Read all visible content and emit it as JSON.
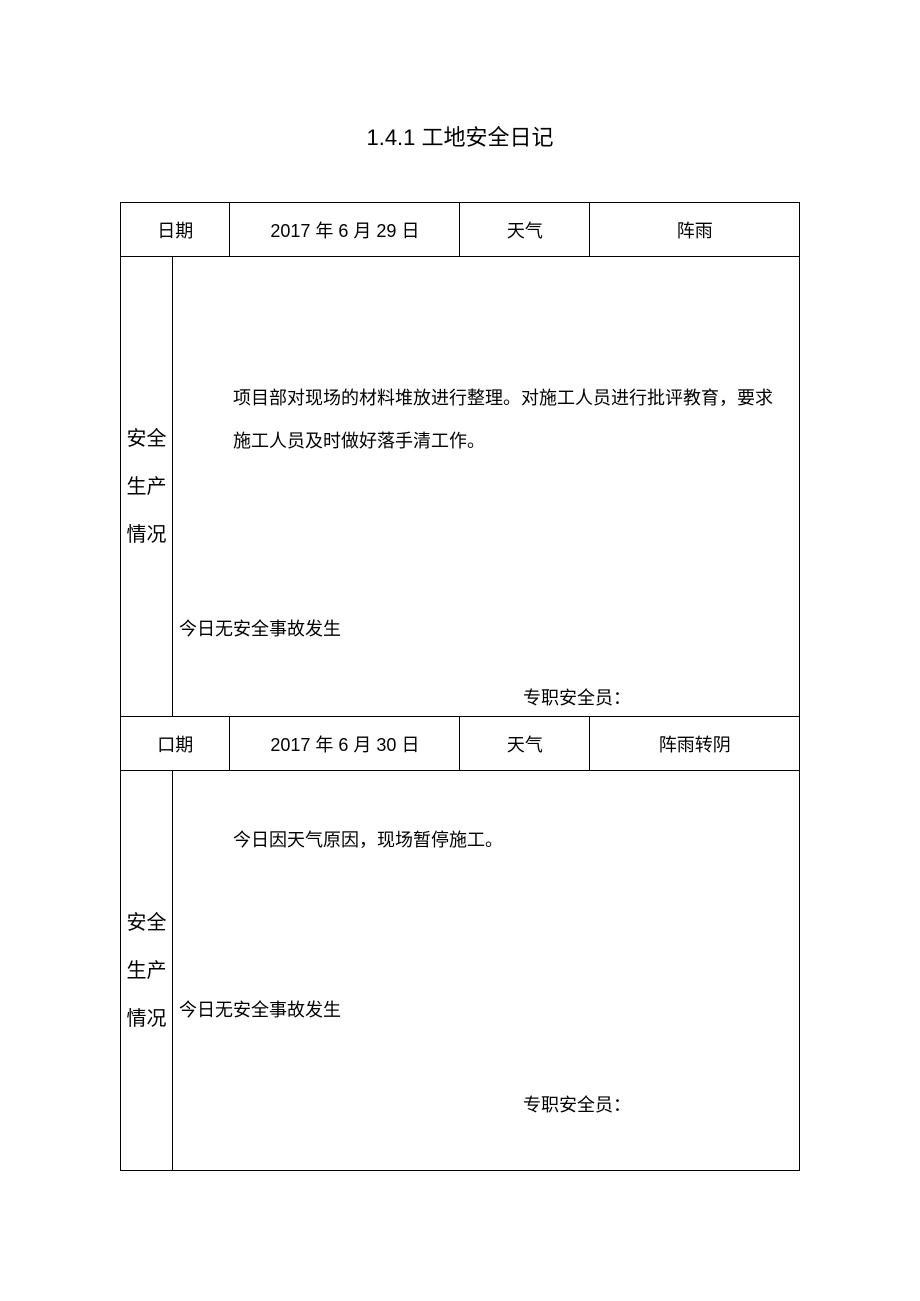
{
  "title": "1.4.1 工地安全日记",
  "labels": {
    "date": "日期",
    "date_alt": "口期",
    "weather": "天气",
    "situation_c1": "安全",
    "situation_c2": "生产",
    "situation_c3": "情况",
    "signer": "专职安全员："
  },
  "entries": [
    {
      "date": "2017 年 6 月 29 日",
      "weather": "阵雨",
      "body_main": "项目部对现场的材料堆放进行整理。对施工人员进行批评教育，要求施工人员及时做好落手清工作。",
      "body_footer": "今日无安全事故发生"
    },
    {
      "date": "2017 年 6 月 30 日",
      "weather": "阵雨转阴",
      "body_main": "今日因天气原因，现场暂停施工。",
      "body_footer": "今日无安全事故发生"
    }
  ],
  "style": {
    "page_bg": "#ffffff",
    "text_color": "#000000",
    "border_color": "#000000",
    "title_fontsize": 22,
    "body_fontsize": 18
  }
}
